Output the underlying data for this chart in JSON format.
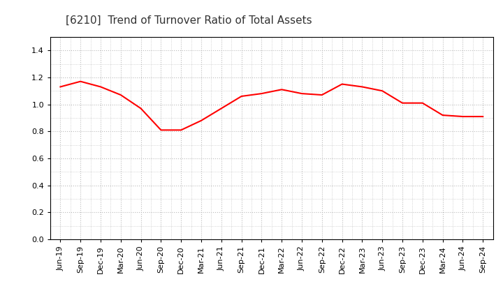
{
  "title": "[6210]  Trend of Turnover Ratio of Total Assets",
  "line_color": "#FF0000",
  "line_width": 1.5,
  "background_color": "#FFFFFF",
  "grid_color": "#BBBBBB",
  "ylim": [
    0.0,
    1.5
  ],
  "yticks": [
    0.0,
    0.2,
    0.4,
    0.6,
    0.8,
    1.0,
    1.2,
    1.4
  ],
  "x_labels": [
    "Jun-19",
    "Sep-19",
    "Dec-19",
    "Mar-20",
    "Jun-20",
    "Sep-20",
    "Dec-20",
    "Mar-21",
    "Jun-21",
    "Sep-21",
    "Dec-21",
    "Mar-22",
    "Jun-22",
    "Sep-22",
    "Dec-22",
    "Mar-23",
    "Jun-23",
    "Sep-23",
    "Dec-23",
    "Mar-24",
    "Jun-24",
    "Sep-24"
  ],
  "values": [
    1.13,
    1.17,
    1.13,
    1.07,
    0.97,
    0.81,
    0.81,
    0.88,
    0.97,
    1.06,
    1.08,
    1.11,
    1.08,
    1.07,
    1.15,
    1.13,
    1.1,
    1.01,
    1.01,
    0.92,
    0.91,
    0.91
  ],
  "title_fontsize": 11,
  "tick_fontsize": 8,
  "title_color": "#333333"
}
